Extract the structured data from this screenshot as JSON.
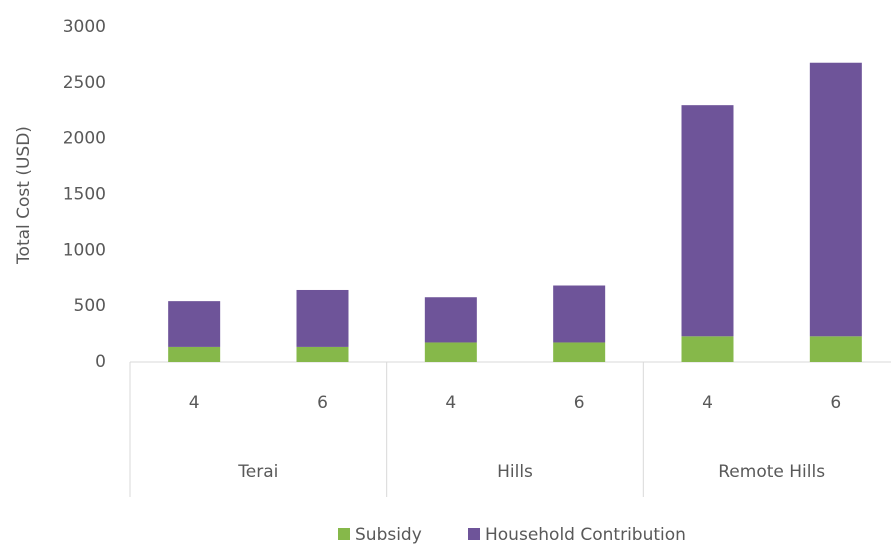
{
  "chart_data": {
    "type": "stacked_bar",
    "y_label": "Total Cost (USD)",
    "categories": [
      "4",
      "6",
      "4",
      "6",
      "4",
      "6"
    ],
    "groups": [
      "Terai",
      "Hills",
      "Remote Hills"
    ],
    "series": [
      {
        "name": "Subsidy",
        "color": "#86b84a",
        "values": [
          135,
          135,
          175,
          175,
          230,
          230
        ]
      },
      {
        "name": "Household Contribution",
        "color": "#6e5499",
        "values": [
          410,
          510,
          405,
          510,
          2070,
          2450
        ]
      }
    ],
    "ylim": [
      0,
      3000
    ],
    "yticks": [
      0,
      500,
      1000,
      1500,
      2000,
      2500,
      3000
    ],
    "grid": false,
    "legend": "bottom"
  }
}
